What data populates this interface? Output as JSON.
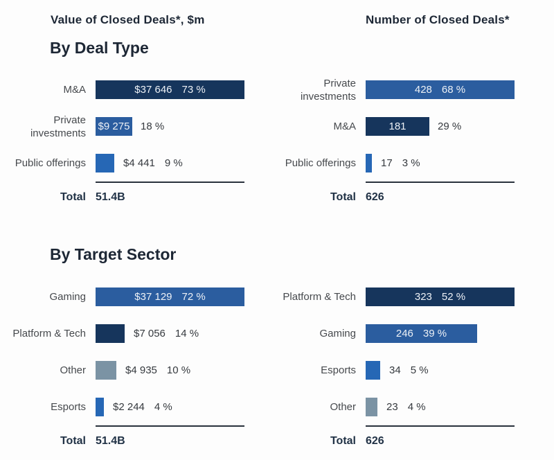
{
  "headers": {
    "left_title": "Value of Closed Deals*, $m",
    "right_title": "Number of Closed Deals*",
    "section_deal_type": "By Deal Type",
    "section_target_sector": "By Target Sector"
  },
  "colors": {
    "navy": "#16355c",
    "blue": "#2b5d9f",
    "bright_blue": "#2667b5",
    "grey_blue": "#7b93a4"
  },
  "chart_data": [
    {
      "id": "value-by-deal-type",
      "type": "bar",
      "title": "Value of Closed Deals*, $m",
      "section": "By Deal Type",
      "max_pct": 73,
      "total_label": "Total",
      "total_value": "51.4B",
      "rows": [
        {
          "label": "M&A",
          "value": 37646,
          "value_text": "$37 646",
          "pct": 73,
          "pct_text": "73 %",
          "color": "navy",
          "placement": "inside"
        },
        {
          "label": "Private investments",
          "value": 9275,
          "value_text": "$9 275",
          "pct": 18,
          "pct_text": "18 %",
          "color": "blue",
          "placement": "split"
        },
        {
          "label": "Public offerings",
          "value": 4441,
          "value_text": "$4 441",
          "pct": 9,
          "pct_text": "9 %",
          "color": "bright_blue",
          "placement": "outside"
        }
      ]
    },
    {
      "id": "count-by-deal-type",
      "type": "bar",
      "title": "Number of Closed Deals*",
      "section": "By Deal Type",
      "max_pct": 68,
      "total_label": "Total",
      "total_value": "626",
      "rows": [
        {
          "label": "Private investments",
          "value": 428,
          "value_text": "428",
          "pct": 68,
          "pct_text": "68 %",
          "color": "blue",
          "placement": "inside"
        },
        {
          "label": "M&A",
          "value": 181,
          "value_text": "181",
          "pct": 29,
          "pct_text": "29 %",
          "color": "navy",
          "placement": "split"
        },
        {
          "label": "Public offerings",
          "value": 17,
          "value_text": "17",
          "pct": 3,
          "pct_text": "3 %",
          "color": "bright_blue",
          "placement": "outside"
        }
      ]
    },
    {
      "id": "value-by-target-sector",
      "type": "bar",
      "title": "Value of Closed Deals*, $m",
      "section": "By Target Sector",
      "max_pct": 72,
      "total_label": "Total",
      "total_value": "51.4B",
      "rows": [
        {
          "label": "Gaming",
          "value": 37129,
          "value_text": "$37 129",
          "pct": 72,
          "pct_text": "72 %",
          "color": "blue",
          "placement": "inside"
        },
        {
          "label": "Platform & Tech",
          "value": 7056,
          "value_text": "$7 056",
          "pct": 14,
          "pct_text": "14 %",
          "color": "navy",
          "placement": "outside"
        },
        {
          "label": "Other",
          "value": 4935,
          "value_text": "$4 935",
          "pct": 10,
          "pct_text": "10 %",
          "color": "grey_blue",
          "placement": "outside"
        },
        {
          "label": "Esports",
          "value": 2244,
          "value_text": "$2 244",
          "pct": 4,
          "pct_text": "4 %",
          "color": "bright_blue",
          "placement": "outside"
        }
      ]
    },
    {
      "id": "count-by-target-sector",
      "type": "bar",
      "title": "Number of Closed Deals*",
      "section": "By Target Sector",
      "max_pct": 52,
      "total_label": "Total",
      "total_value": "626",
      "rows": [
        {
          "label": "Platform & Tech",
          "value": 323,
          "value_text": "323",
          "pct": 52,
          "pct_text": "52 %",
          "color": "navy",
          "placement": "inside"
        },
        {
          "label": "Gaming",
          "value": 246,
          "value_text": "246",
          "pct": 39,
          "pct_text": "39 %",
          "color": "blue",
          "placement": "inside"
        },
        {
          "label": "Esports",
          "value": 34,
          "value_text": "34",
          "pct": 5,
          "pct_text": "5 %",
          "color": "bright_blue",
          "placement": "outside"
        },
        {
          "label": "Other",
          "value": 23,
          "value_text": "23",
          "pct": 4,
          "pct_text": "4 %",
          "color": "grey_blue",
          "placement": "outside"
        }
      ]
    }
  ]
}
